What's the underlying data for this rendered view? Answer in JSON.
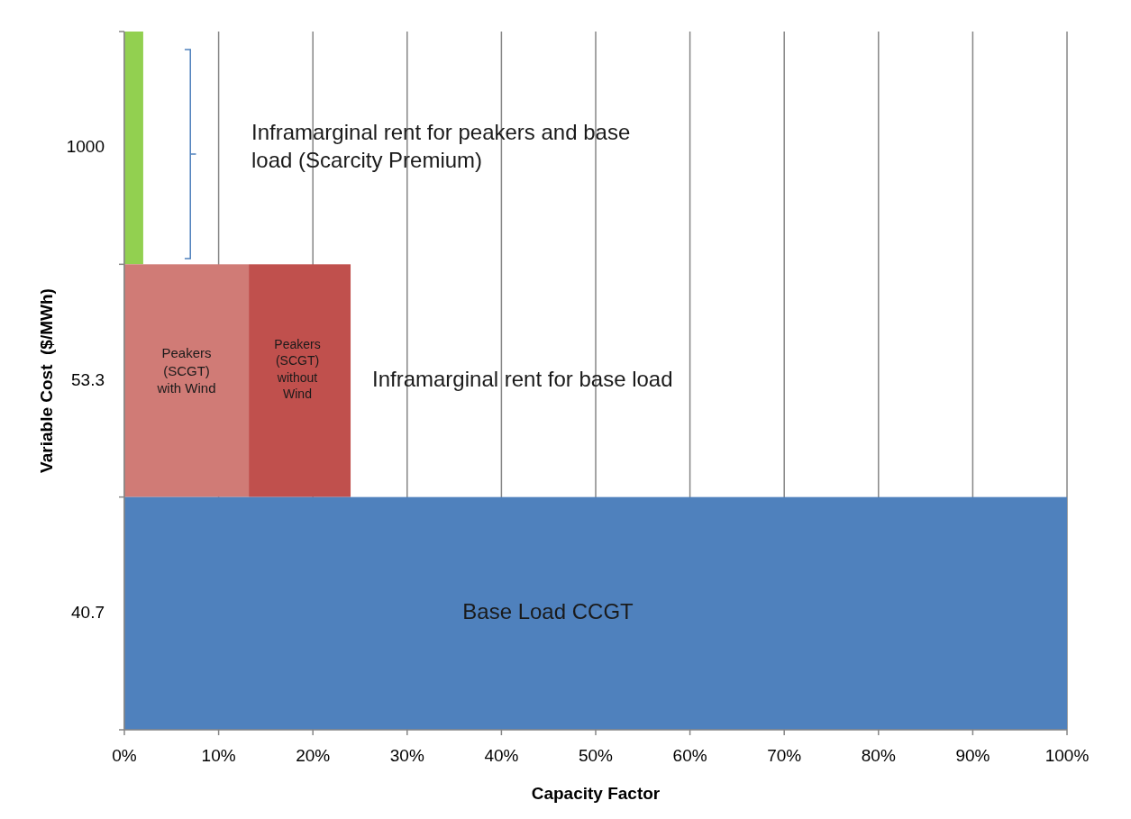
{
  "chart_data": {
    "type": "bar",
    "orientation": "horizontal",
    "stacked": true,
    "categories": [
      "1000",
      "53.3",
      "40.7"
    ],
    "series": [
      {
        "color": "#92d050",
        "values": [
          2,
          null,
          null
        ]
      },
      {
        "color": "#d07b76",
        "values": [
          null,
          13.2,
          null
        ]
      },
      {
        "color": "#c0504d",
        "values": [
          null,
          10.8,
          null
        ]
      },
      {
        "color": "#4f81bd",
        "values": [
          null,
          null,
          100
        ]
      }
    ],
    "xlim": [
      0,
      100
    ],
    "xticks": [
      {
        "value": 0,
        "label": "0%"
      },
      {
        "value": 10,
        "label": "10%"
      },
      {
        "value": 20,
        "label": "20%"
      },
      {
        "value": 30,
        "label": "30%"
      },
      {
        "value": 40,
        "label": "40%"
      },
      {
        "value": 50,
        "label": "50%"
      },
      {
        "value": 60,
        "label": "60%"
      },
      {
        "value": 70,
        "label": "70%"
      },
      {
        "value": 80,
        "label": "80%"
      },
      {
        "value": 90,
        "label": "90%"
      },
      {
        "value": 100,
        "label": "100%"
      }
    ],
    "xlabel": "Capacity Factor",
    "ylabel": "Variable Cost  ($/MWh)",
    "grid": "x",
    "annotations": [
      "Inframarginal rent for peakers and base load (Scarcity Premium)",
      "Inframarginal rent for base load",
      "Peakers (SCGT) with Wind",
      "Peakers (SCGT) without Wind",
      "Base Load CCGT"
    ]
  }
}
